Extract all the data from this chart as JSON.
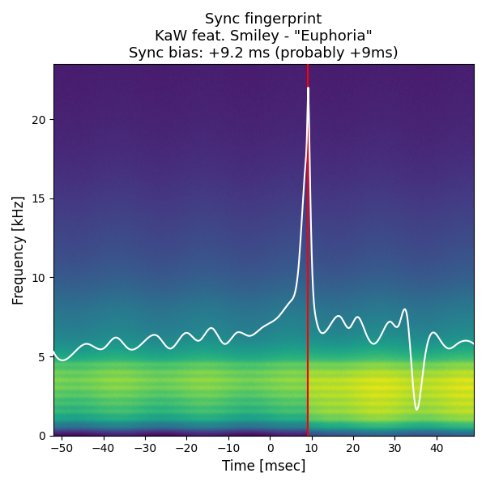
{
  "title_line1": "Sync fingerprint",
  "title_line2": "KaW feat. Smiley - \"Euphoria\"",
  "title_line3": "Sync bias: +9.2 ms (probably +9ms)",
  "xlabel": "Time [msec]",
  "ylabel": "Frequency [kHz]",
  "time_range": [
    -52,
    49
  ],
  "freq_range": [
    0,
    23.5
  ],
  "red_line_x": 9.2,
  "xticks": [
    -50,
    -40,
    -30,
    -20,
    -10,
    0,
    10,
    20,
    30,
    40
  ],
  "yticks": [
    0,
    5,
    10,
    15,
    20
  ],
  "colormap": "viridis",
  "fig_facecolor": "#ffffff",
  "title_fontsize": 13,
  "figsize": [
    6.0,
    6.0
  ],
  "dpi": 100,
  "white_line_key_t": [
    -52,
    -48,
    -44,
    -40,
    -37,
    -34,
    -30,
    -27,
    -24,
    -20,
    -17,
    -14,
    -11,
    -8,
    -5,
    -2,
    2,
    5,
    7,
    8.5,
    9.0,
    9.2,
    9.4,
    10.0,
    11,
    13,
    15,
    17,
    19,
    21,
    23,
    25,
    27,
    29,
    31,
    33,
    35,
    37,
    39,
    41,
    43,
    45,
    47,
    49
  ],
  "white_line_key_f": [
    5.3,
    5.0,
    5.8,
    5.5,
    6.2,
    5.5,
    6.0,
    6.3,
    5.5,
    6.5,
    6.0,
    6.8,
    5.8,
    6.5,
    6.3,
    6.8,
    7.5,
    8.5,
    11,
    17,
    20,
    22,
    20,
    12,
    7.5,
    6.5,
    7.2,
    7.5,
    6.8,
    7.5,
    6.5,
    5.8,
    6.5,
    7.2,
    7.0,
    7.5,
    1.8,
    4.5,
    6.5,
    6.0,
    5.5,
    5.8,
    6.0,
    5.8
  ]
}
